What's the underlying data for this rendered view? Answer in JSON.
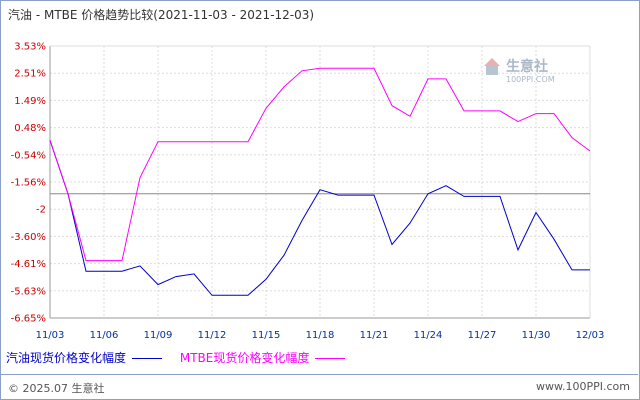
{
  "title": "汽油 - MTBE 价格趋势比较(2021-11-03 - 2021-12-03)",
  "chart_data": {
    "type": "line",
    "x": [
      "11/03",
      "11/04",
      "11/05",
      "11/06",
      "11/07",
      "11/08",
      "11/09",
      "11/10",
      "11/11",
      "11/12",
      "11/13",
      "11/14",
      "11/15",
      "11/16",
      "11/17",
      "11/18",
      "11/19",
      "11/20",
      "11/21",
      "11/22",
      "11/23",
      "11/24",
      "11/25",
      "11/26",
      "11/27",
      "11/28",
      "11/29",
      "11/30",
      "12/01",
      "12/02",
      "12/03"
    ],
    "xticks": [
      "11/03",
      "11/06",
      "11/09",
      "11/12",
      "11/15",
      "11/18",
      "11/21",
      "11/24",
      "11/27",
      "11/30",
      "12/03"
    ],
    "yticks": [
      "3.53%",
      "2.51%",
      "1.49%",
      "0.48%",
      "-0.54%",
      "-1.56%",
      "-2",
      "-3.60%",
      "-4.61%",
      "-5.63%",
      "-6.65%"
    ],
    "ylim": [
      -6.65,
      3.53
    ],
    "baseline": -2.0,
    "series": [
      {
        "name": "汽油现货价格变化幅度",
        "color": "#0000cc",
        "values": [
          0.0,
          -2.0,
          -4.9,
          -4.9,
          -4.9,
          -4.7,
          -5.4,
          -5.1,
          -5.0,
          -5.8,
          -5.8,
          -5.8,
          -5.2,
          -4.3,
          -3.0,
          -1.85,
          -2.05,
          -2.05,
          -2.05,
          -3.9,
          -3.1,
          -2.0,
          -1.7,
          -2.1,
          -2.1,
          -2.1,
          -4.1,
          -2.7,
          -3.7,
          -4.85,
          -4.85
        ]
      },
      {
        "name": "MTBE现货价格变化幅度",
        "color": "#ff00ff",
        "values": [
          0.0,
          -2.0,
          -4.5,
          -4.5,
          -4.5,
          -1.4,
          -0.05,
          -0.05,
          -0.05,
          -0.05,
          -0.05,
          -0.05,
          1.2,
          2.0,
          2.6,
          2.7,
          2.7,
          2.7,
          2.7,
          1.3,
          0.9,
          2.3,
          2.3,
          1.1,
          1.1,
          1.1,
          0.7,
          1.0,
          1.0,
          0.1,
          -0.4
        ]
      }
    ]
  },
  "watermark": {
    "name": "生意社",
    "url": "100PPI.COM"
  },
  "legend": {
    "gasoline": "汽油现货价格变化幅度",
    "mtbe": "MTBE现货价格变化幅度"
  },
  "footer": {
    "copyright": "© 2025.07 生意社",
    "url": "www.100PPI.com"
  }
}
